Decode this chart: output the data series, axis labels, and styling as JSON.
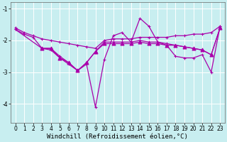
{
  "background_color": "#c8eef0",
  "grid_color": "#b0dde0",
  "line_color": "#aa00aa",
  "xlabel": "Windchill (Refroidissement éolien,°C)",
  "ylim": [
    -4.6,
    -0.8
  ],
  "xlim": [
    -0.5,
    23.5
  ],
  "yticks": [
    -4,
    -3,
    -2,
    -1
  ],
  "xticks": [
    0,
    1,
    2,
    3,
    4,
    5,
    6,
    7,
    8,
    9,
    10,
    11,
    12,
    13,
    14,
    15,
    16,
    17,
    18,
    19,
    20,
    21,
    22,
    23
  ],
  "series": [
    {
      "x": [
        0,
        1,
        2,
        3,
        4,
        5,
        6,
        7,
        8,
        9,
        10,
        11,
        12,
        13,
        14,
        15,
        16,
        17,
        18,
        19,
        20,
        21,
        22,
        23
      ],
      "y": [
        -1.6,
        -1.75,
        -1.85,
        -1.95,
        -2.0,
        -2.05,
        -2.1,
        -2.15,
        -2.2,
        -2.25,
        -2.0,
        -1.95,
        -1.95,
        -1.95,
        -1.9,
        -1.9,
        -1.9,
        -1.9,
        -1.85,
        -1.85,
        -1.8,
        -1.8,
        -1.75,
        -1.55
      ],
      "marker": "+"
    },
    {
      "x": [
        0,
        1,
        2,
        3,
        4,
        5,
        6,
        7,
        8,
        9,
        10,
        11,
        12,
        13,
        14,
        15,
        16,
        17,
        18,
        19,
        20,
        21,
        22,
        23
      ],
      "y": [
        -1.65,
        -1.8,
        -1.9,
        -2.25,
        -2.25,
        -2.5,
        -2.7,
        -2.95,
        -2.7,
        -2.35,
        -2.05,
        -2.05,
        -2.05,
        -2.05,
        -2.0,
        -2.05,
        -2.05,
        -2.1,
        -2.15,
        -2.2,
        -2.25,
        -2.3,
        -2.45,
        -1.6
      ],
      "marker": "+"
    },
    {
      "x": [
        0,
        3,
        4,
        5,
        6,
        7,
        8,
        9,
        10,
        11,
        12,
        13,
        14,
        15,
        16,
        17,
        18,
        19,
        20,
        21,
        22,
        23
      ],
      "y": [
        -1.65,
        -2.25,
        -2.3,
        -2.55,
        -2.75,
        -2.95,
        -2.75,
        -4.1,
        -2.6,
        -1.85,
        -1.75,
        -2.05,
        -1.3,
        -1.55,
        -2.05,
        -2.15,
        -2.5,
        -2.55,
        -2.55,
        -2.45,
        -3.0,
        -1.55
      ],
      "marker": "+"
    },
    {
      "x": [
        3,
        4,
        5,
        6,
        7,
        8,
        9,
        10,
        11,
        12,
        13,
        14,
        15,
        16,
        17,
        18,
        19,
        20,
        21,
        22,
        23
      ],
      "y": [
        -2.25,
        -2.25,
        -2.55,
        -2.7,
        -2.95,
        -2.7,
        -2.35,
        -2.1,
        -2.1,
        -2.1,
        -2.1,
        -2.05,
        -2.1,
        -2.1,
        -2.15,
        -2.15,
        -2.2,
        -2.25,
        -2.3,
        -2.45,
        -1.6
      ],
      "marker": "^"
    }
  ],
  "tick_fontsize": 5.5,
  "xlabel_fontsize": 6.5,
  "linewidth": 0.9,
  "markersize": 3.0
}
